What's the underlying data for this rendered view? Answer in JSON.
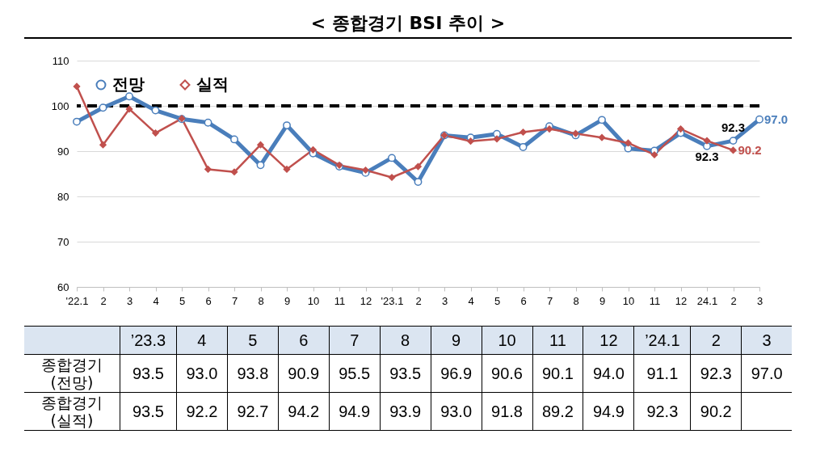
{
  "chart_data": {
    "type": "line",
    "title": "< 종합경기 BSI 추이 >",
    "categories": [
      "'22.1",
      "2",
      "3",
      "4",
      "5",
      "6",
      "7",
      "8",
      "9",
      "10",
      "11",
      "12",
      "'23.1",
      "2",
      "3",
      "4",
      "5",
      "6",
      "7",
      "8",
      "9",
      "10",
      "11",
      "12",
      "24.1",
      "2",
      "3"
    ],
    "series": [
      {
        "name": "전망",
        "color": "#4a7ebb",
        "marker": "circle",
        "values": [
          96.5,
          99.6,
          102.1,
          99.0,
          97.1,
          96.3,
          92.6,
          86.9,
          95.7,
          89.5,
          86.6,
          85.2,
          88.5,
          83.2,
          93.5,
          93.0,
          93.8,
          90.9,
          95.5,
          93.5,
          96.9,
          90.6,
          90.1,
          94.0,
          91.1,
          92.3,
          97.0
        ],
        "value_labels": [
          null,
          null,
          null,
          null,
          null,
          null,
          null,
          null,
          null,
          null,
          null,
          null,
          null,
          null,
          null,
          null,
          null,
          null,
          null,
          null,
          null,
          null,
          null,
          null,
          null,
          "92.3",
          "97.0"
        ]
      },
      {
        "name": "실적",
        "color": "#c0504d",
        "marker": "diamond",
        "values": [
          104.3,
          91.4,
          99.3,
          94.0,
          97.2,
          86.0,
          85.4,
          91.4,
          86.0,
          90.3,
          86.9,
          85.8,
          84.2,
          86.6,
          93.5,
          92.2,
          92.7,
          94.2,
          94.9,
          93.9,
          93.0,
          91.8,
          89.2,
          94.9,
          92.3,
          90.2,
          null
        ],
        "value_labels": [
          null,
          null,
          null,
          null,
          null,
          null,
          null,
          null,
          null,
          null,
          null,
          null,
          null,
          null,
          null,
          null,
          null,
          null,
          null,
          null,
          null,
          null,
          null,
          null,
          "92.3",
          "90.2",
          null
        ]
      }
    ],
    "ylim": [
      60,
      110
    ],
    "yticks": [
      60,
      70,
      80,
      90,
      100,
      110
    ],
    "grid": "y",
    "legend": "top left",
    "ref_lines": [
      {
        "axis": "y",
        "value": 100,
        "color": "#000000",
        "line_style": "dashed"
      }
    ],
    "annotations": [
      "종합경기 (전망)",
      "종합경기 (실적)",
      "’23.3",
      "4",
      "5",
      "6",
      "7",
      "8",
      "9",
      "10",
      "11",
      "12",
      "’24.1",
      "2",
      "3",
      "93.5",
      "93.0",
      "93.8",
      "90.9",
      "95.5",
      "93.5",
      "96.9",
      "90.6",
      "90.1",
      "94.0",
      "91.1",
      "92.3",
      "97.0",
      "93.5",
      "92.2",
      "92.7",
      "94.2",
      "94.9",
      "93.9",
      "93.0",
      "91.8",
      "89.2",
      "94.9",
      "92.3",
      "90.2"
    ]
  }
}
